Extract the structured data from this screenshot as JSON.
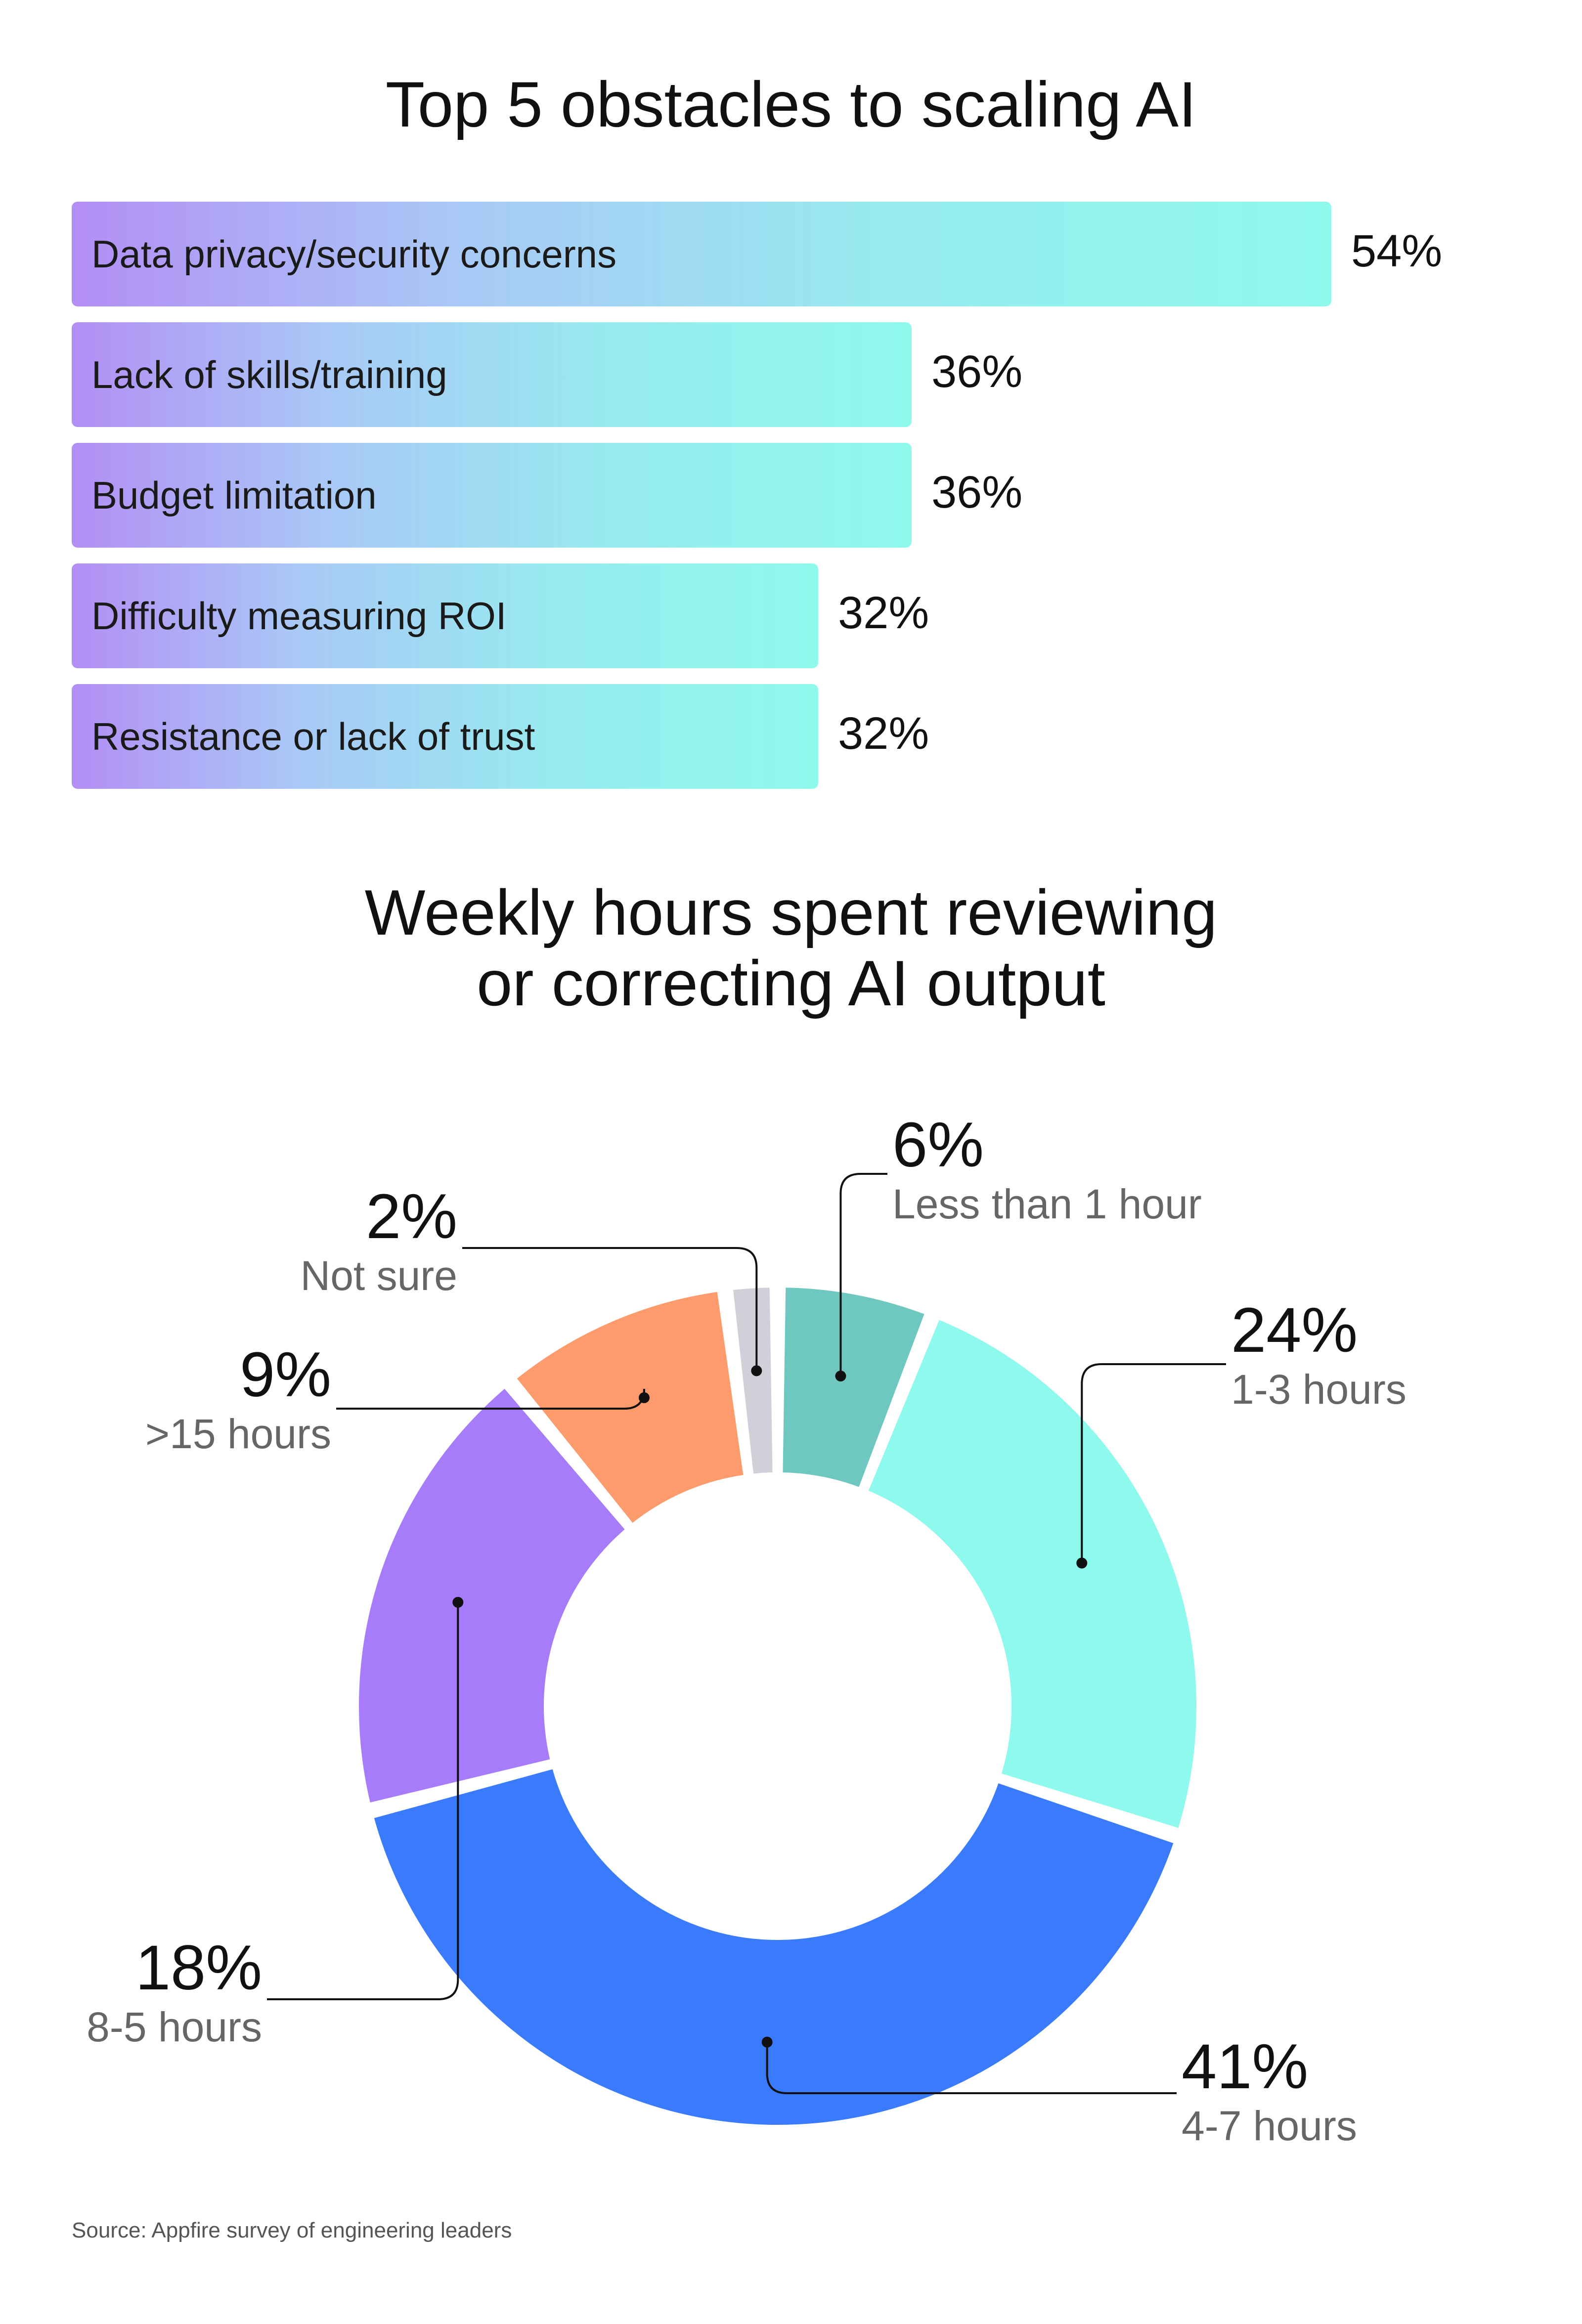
{
  "source": "Source: Appfire survey of engineering leaders",
  "chart_data": [
    {
      "type": "bar",
      "orientation": "horizontal",
      "title": "Top 5 obstacles to scaling AI",
      "categories": [
        "Data privacy/security concerns",
        "Lack of skills/training",
        "Budget limitation",
        "Difficulty measuring ROI",
        "Resistance or lack of trust"
      ],
      "values": [
        54,
        36,
        36,
        32,
        32
      ],
      "value_labels": [
        "54%",
        "36%",
        "36%",
        "32%",
        "32%"
      ],
      "xlim": [
        0,
        54
      ],
      "grid": false
    },
    {
      "type": "pie",
      "variant": "donut",
      "title_lines": [
        "Weekly hours spent reviewing",
        "or correcting AI output"
      ],
      "slices": [
        {
          "label": "Less than 1 hour",
          "value": 6,
          "value_label": "6%",
          "color": "#6ec8bf"
        },
        {
          "label": "1-3 hours",
          "value": 24,
          "value_label": "24%",
          "color": "#8efaee"
        },
        {
          "label": "4-7 hours",
          "value": 41,
          "value_label": "41%",
          "color": "#3a7afd"
        },
        {
          "label": "8-5 hours",
          "value": 18,
          "value_label": "18%",
          "color": "#a67cfb"
        },
        {
          "label": ">15 hours",
          "value": 9,
          "value_label": "9%",
          "color": "#fd9b6c"
        },
        {
          "label": "Not sure",
          "value": 2,
          "value_label": "2%",
          "color": "#d2cfd8"
        }
      ]
    }
  ]
}
